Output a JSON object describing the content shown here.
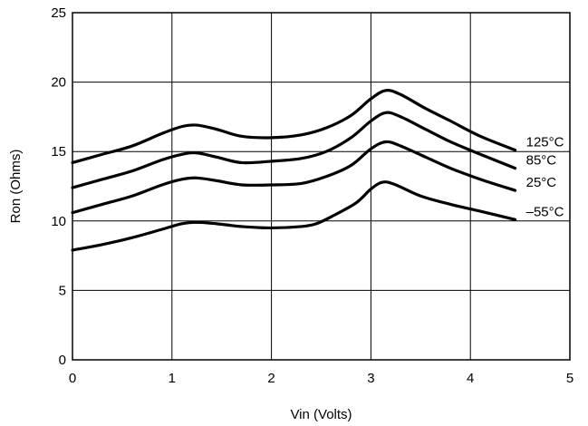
{
  "chart_data": {
    "type": "line",
    "title": "",
    "xlabel": "Vin (Volts)",
    "ylabel": "Ron (Ohms)",
    "xlim": [
      0,
      5
    ],
    "ylim": [
      0,
      25
    ],
    "xticks": [
      "0",
      "1",
      "2",
      "3",
      "4",
      "5"
    ],
    "yticks": [
      "0",
      "5",
      "10",
      "15",
      "20",
      "25"
    ],
    "grid": true,
    "series": [
      {
        "name": "125°C",
        "x": [
          0,
          0.3,
          0.6,
          0.9,
          1.1,
          1.25,
          1.45,
          1.7,
          2.0,
          2.3,
          2.55,
          2.8,
          3.0,
          3.15,
          3.3,
          3.55,
          3.8,
          4.1,
          4.45
        ],
        "y": [
          14.2,
          14.8,
          15.4,
          16.3,
          16.8,
          16.9,
          16.6,
          16.1,
          16.0,
          16.2,
          16.7,
          17.6,
          18.8,
          19.4,
          19.1,
          18.1,
          17.2,
          16.1,
          15.1
        ]
      },
      {
        "name": "85°C",
        "x": [
          0,
          0.3,
          0.6,
          0.9,
          1.1,
          1.25,
          1.45,
          1.7,
          2.0,
          2.3,
          2.55,
          2.8,
          3.0,
          3.15,
          3.3,
          3.55,
          3.8,
          4.1,
          4.45
        ],
        "y": [
          12.4,
          13.0,
          13.6,
          14.4,
          14.8,
          14.9,
          14.6,
          14.2,
          14.3,
          14.5,
          15.0,
          16.0,
          17.2,
          17.8,
          17.5,
          16.6,
          15.7,
          14.8,
          13.8
        ]
      },
      {
        "name": "25°C",
        "x": [
          0,
          0.3,
          0.6,
          0.9,
          1.1,
          1.25,
          1.45,
          1.7,
          2.0,
          2.3,
          2.55,
          2.8,
          3.0,
          3.15,
          3.3,
          3.55,
          3.8,
          4.1,
          4.45
        ],
        "y": [
          10.6,
          11.2,
          11.8,
          12.6,
          13.0,
          13.1,
          12.9,
          12.6,
          12.6,
          12.7,
          13.2,
          14.0,
          15.2,
          15.7,
          15.4,
          14.6,
          13.8,
          13.0,
          12.2
        ]
      },
      {
        "name": "–55°C",
        "x": [
          0,
          0.3,
          0.6,
          0.9,
          1.1,
          1.25,
          1.45,
          1.7,
          2.0,
          2.3,
          2.45,
          2.6,
          2.85,
          3.0,
          3.12,
          3.25,
          3.5,
          3.8,
          4.1,
          4.45
        ],
        "y": [
          7.9,
          8.3,
          8.8,
          9.4,
          9.8,
          9.9,
          9.8,
          9.6,
          9.5,
          9.6,
          9.8,
          10.3,
          11.3,
          12.3,
          12.8,
          12.6,
          11.8,
          11.2,
          10.7,
          10.1
        ]
      }
    ]
  }
}
